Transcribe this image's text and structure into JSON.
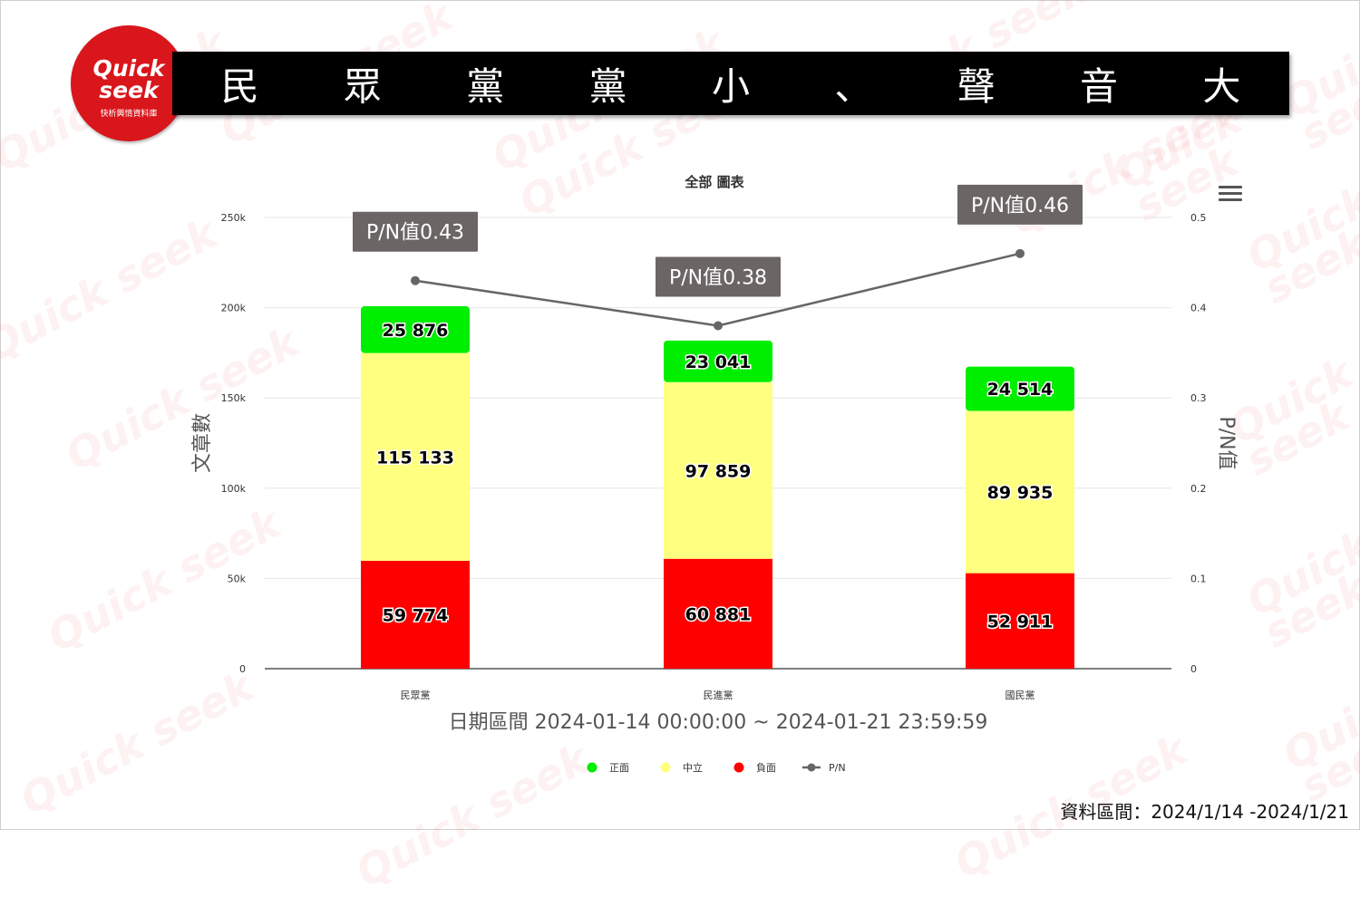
{
  "banner": {
    "title": "民 眾 黨 黨 小 、 聲 音 大"
  },
  "logo": {
    "brand": "Quick seek",
    "tagline": "快析輿情資料庫"
  },
  "watermark_text": "Quick seek",
  "footer": {
    "date_range": "資料區間：2024/1/14 -2024/1/21"
  },
  "menu": {
    "icon": "hamburger-menu-icon"
  },
  "chart_data": {
    "type": "bar",
    "stacked": true,
    "title": "全部 圖表",
    "xlabel": "日期區間 2024-01-14 00:00:00 ~ 2024-01-21 23:59:59",
    "ylabel": "文章數",
    "y2label": "P/N值",
    "ylim": [
      0,
      250000
    ],
    "y2lim": [
      0,
      0.5
    ],
    "yticks": [
      "0",
      "50k",
      "100k",
      "150k",
      "200k",
      "250k"
    ],
    "y2ticks": [
      "0",
      "0.1",
      "0.2",
      "0.3",
      "0.4",
      "0.5"
    ],
    "categories": [
      "民眾黨",
      "民進黨",
      "國民黨"
    ],
    "series": [
      {
        "name": "負面",
        "color": "#ff0000",
        "values": [
          59774,
          60881,
          52911
        ],
        "labels": [
          "59 774",
          "60 881",
          "52 911"
        ]
      },
      {
        "name": "中立",
        "color": "#ffff80",
        "values": [
          115133,
          97859,
          89935
        ],
        "labels": [
          "115 133",
          "97 859",
          "89 935"
        ]
      },
      {
        "name": "正面",
        "color": "#00ee00",
        "values": [
          25876,
          23041,
          24514
        ],
        "labels": [
          "25 876",
          "23 041",
          "24 514"
        ]
      }
    ],
    "line": {
      "name": "P/N",
      "color": "#666666",
      "values": [
        0.43,
        0.38,
        0.46
      ],
      "labels": [
        "P/N值0.43",
        "P/N值0.38",
        "P/N值0.46"
      ]
    },
    "legend": [
      {
        "name": "正面",
        "color": "#00ee00",
        "marker": "dot"
      },
      {
        "name": "中立",
        "color": "#ffff80",
        "marker": "dot"
      },
      {
        "name": "負面",
        "color": "#ff0000",
        "marker": "dot"
      },
      {
        "name": "P/N",
        "color": "#666666",
        "marker": "line"
      }
    ],
    "legend_position": "bottom",
    "grid": true
  }
}
